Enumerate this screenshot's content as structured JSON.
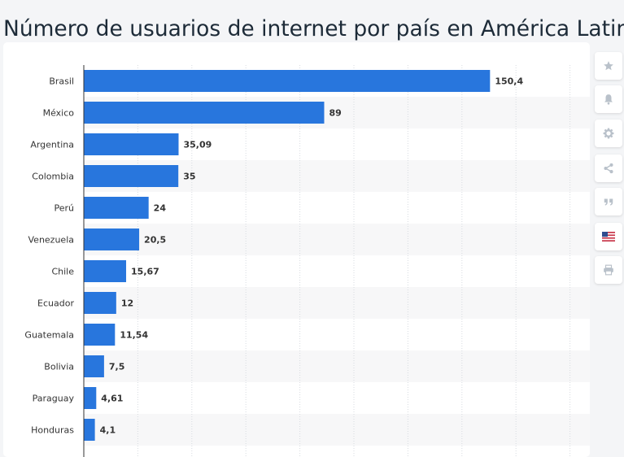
{
  "page": {
    "title": "Número de usuarios de internet por país en América Latina"
  },
  "toolbar": {
    "icons": [
      "star-icon",
      "bell-icon",
      "gear-icon",
      "share-icon",
      "quote-icon",
      "flag-icon",
      "print-icon"
    ]
  },
  "colors": {
    "bar": "#2876dd",
    "grid": "#d7dbe0",
    "axis": "#333333",
    "stripe": "#f7f7f8",
    "icon": "#b9c1ca"
  },
  "chart_data": {
    "type": "bar",
    "orientation": "horizontal",
    "categories": [
      "Brasil",
      "México",
      "Argentina",
      "Colombia",
      "Perú",
      "Venezuela",
      "Chile",
      "Ecuador",
      "Guatemala",
      "Bolivia",
      "Paraguay",
      "Honduras"
    ],
    "values": [
      150.4,
      89,
      35.09,
      35,
      24,
      20.5,
      15.67,
      12,
      11.54,
      7.5,
      4.61,
      4.1
    ],
    "value_labels": [
      "150,4",
      "89",
      "35,09",
      "35",
      "24",
      "20,5",
      "15,67",
      "12",
      "11,54",
      "7,5",
      "4,61",
      "4,1"
    ],
    "xlim": [
      0,
      180
    ],
    "grid": true,
    "legend": "none"
  }
}
